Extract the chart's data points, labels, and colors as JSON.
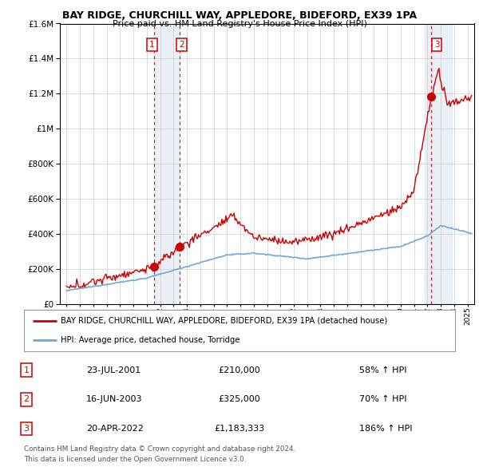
{
  "title": "BAY RIDGE, CHURCHILL WAY, APPLEDORE, BIDEFORD, EX39 1PA",
  "subtitle": "Price paid vs. HM Land Registry's House Price Index (HPI)",
  "legend_line1": "BAY RIDGE, CHURCHILL WAY, APPLEDORE, BIDEFORD, EX39 1PA (detached house)",
  "legend_line2": "HPI: Average price, detached house, Torridge",
  "footer1": "Contains HM Land Registry data © Crown copyright and database right 2024.",
  "footer2": "This data is licensed under the Open Government Licence v3.0.",
  "transactions": [
    {
      "num": "1",
      "date": "23-JUL-2001",
      "price": "£210,000",
      "change": "58% ↑ HPI"
    },
    {
      "num": "2",
      "date": "16-JUN-2003",
      "price": "£325,000",
      "change": "70% ↑ HPI"
    },
    {
      "num": "3",
      "date": "20-APR-2022",
      "price": "£1,183,333",
      "change": "186% ↑ HPI"
    }
  ],
  "sale_dates": [
    2001.55,
    2003.46,
    2022.3
  ],
  "sale_prices": [
    210000,
    325000,
    1183333
  ],
  "hpi_color": "#6fa8dc",
  "price_color": "#cc0000",
  "shade_color": "#dce6f1",
  "ylim": [
    0,
    1600000
  ],
  "xlim": [
    1994.5,
    2025.5
  ],
  "yticks": [
    0,
    200000,
    400000,
    600000,
    800000,
    1000000,
    1200000,
    1400000,
    1600000
  ],
  "xticks": [
    1995,
    1996,
    1997,
    1998,
    1999,
    2000,
    2001,
    2002,
    2003,
    2004,
    2005,
    2006,
    2007,
    2008,
    2009,
    2010,
    2011,
    2012,
    2013,
    2014,
    2015,
    2016,
    2017,
    2018,
    2019,
    2020,
    2021,
    2022,
    2023,
    2024,
    2025
  ]
}
